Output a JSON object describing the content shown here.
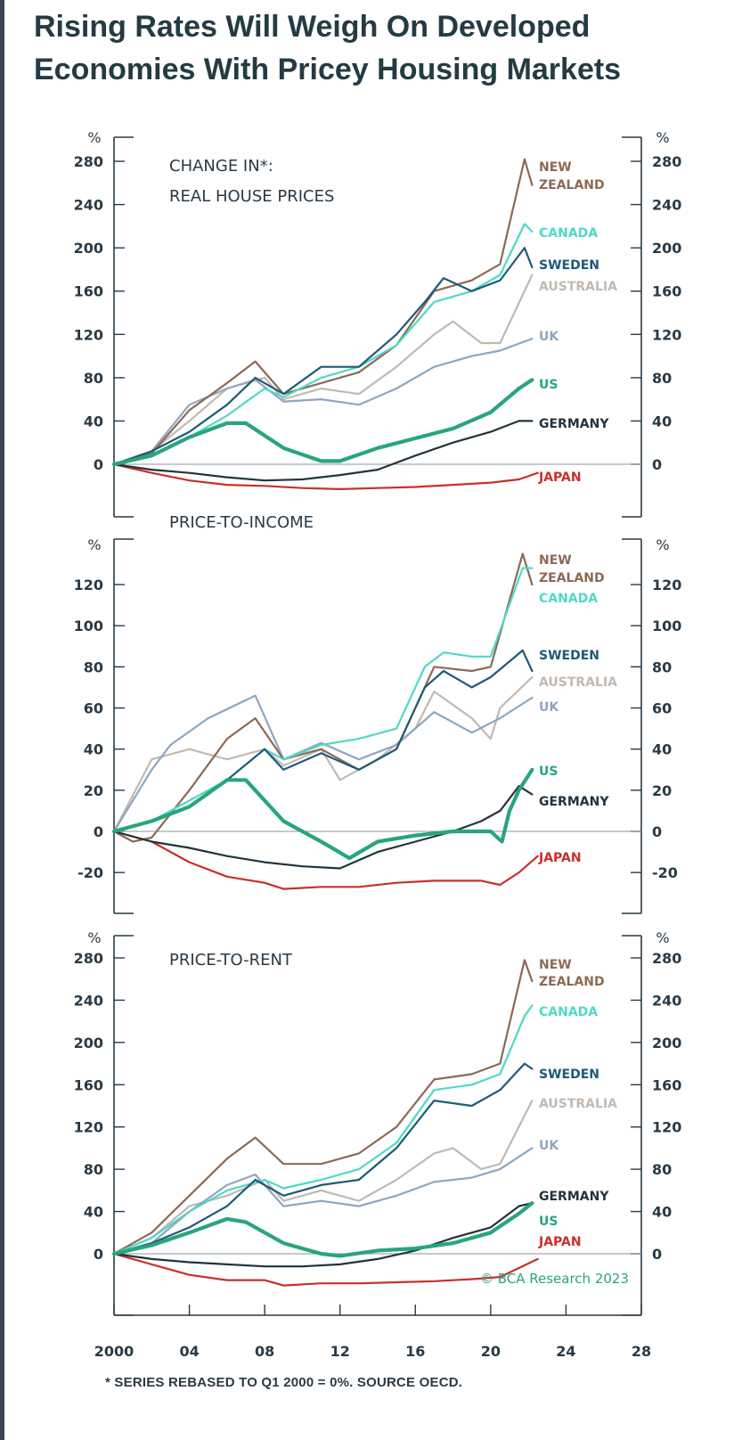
{
  "title_lines": [
    "Rising Rates Will Weigh On Developed",
    "Economies With Pricey Housing Markets"
  ],
  "footnote": "* SERIES REBASED TO Q1 2000 = 0%. SOURCE OECD.",
  "source": "© BCA Research 2023",
  "x_axis": {
    "ticks": [
      2000,
      2004,
      2008,
      2012,
      2016,
      2020,
      2024,
      2028
    ],
    "tick_labels": [
      "2000",
      "04",
      "08",
      "12",
      "16",
      "20",
      "24",
      "28"
    ],
    "range": [
      2000,
      2028
    ]
  },
  "colors": {
    "New Zealand": "#8b6a55",
    "Canada": "#4fd8c8",
    "Sweden": "#1d5a78",
    "Australia": "#c2b9b1",
    "UK": "#8ea6c0",
    "US": "#27a57e",
    "Germany": "#22343e",
    "Japan": "#c8302c"
  },
  "chart_data": [
    {
      "type": "line",
      "title": "CHANGE IN*: REAL HOUSE PRICES",
      "title_lines": [
        "CHANGE IN*:",
        "REAL HOUSE PRICES"
      ],
      "ylabel": "%",
      "ylim": [
        -40,
        290
      ],
      "yticks": [
        0,
        40,
        80,
        120,
        160,
        200,
        240,
        280
      ],
      "series": [
        {
          "name": "New Zealand",
          "label_lines": [
            "NEW",
            "ZEALAND"
          ],
          "x": [
            2000,
            2002,
            2004,
            2006,
            2007.5,
            2009,
            2011,
            2013,
            2015,
            2017,
            2019,
            2020.5,
            2021.8,
            2022.2
          ],
          "values": [
            0,
            10,
            50,
            75,
            95,
            65,
            75,
            85,
            110,
            160,
            170,
            185,
            282,
            258
          ]
        },
        {
          "name": "Canada",
          "label_lines": [
            "CANADA"
          ],
          "x": [
            2000,
            2002,
            2004,
            2006,
            2008,
            2009,
            2011,
            2013,
            2015,
            2017,
            2019,
            2020.5,
            2021.8,
            2022.2
          ],
          "values": [
            0,
            8,
            25,
            45,
            70,
            62,
            80,
            90,
            110,
            150,
            160,
            175,
            222,
            215
          ]
        },
        {
          "name": "Sweden",
          "label_lines": [
            "SWEDEN"
          ],
          "x": [
            2000,
            2002,
            2004,
            2006,
            2007.5,
            2009,
            2011,
            2013,
            2015,
            2016.5,
            2017.5,
            2019,
            2020.5,
            2021.8,
            2022.2
          ],
          "values": [
            0,
            12,
            30,
            55,
            80,
            65,
            90,
            90,
            120,
            150,
            172,
            160,
            170,
            200,
            182
          ]
        },
        {
          "name": "Australia",
          "label_lines": [
            "AUSTRALIA"
          ],
          "x": [
            2000,
            2002,
            2004,
            2006,
            2008,
            2009,
            2011,
            2013,
            2015,
            2017,
            2018,
            2019.5,
            2020.5,
            2022.2
          ],
          "values": [
            0,
            12,
            40,
            70,
            80,
            60,
            70,
            65,
            90,
            120,
            132,
            112,
            112,
            175
          ]
        },
        {
          "name": "UK",
          "label_lines": [
            "UK"
          ],
          "x": [
            2000,
            2002,
            2004,
            2006,
            2007.5,
            2009,
            2011,
            2013,
            2015,
            2017,
            2019,
            2020.5,
            2022.2
          ],
          "values": [
            0,
            12,
            55,
            70,
            78,
            58,
            60,
            55,
            70,
            90,
            100,
            105,
            116
          ]
        },
        {
          "name": "US",
          "label_lines": [
            "US"
          ],
          "x": [
            2000,
            2002,
            2004,
            2006,
            2007,
            2009,
            2011,
            2012,
            2014,
            2016,
            2018,
            2020,
            2021.5,
            2022.2
          ],
          "values": [
            0,
            8,
            25,
            38,
            38,
            15,
            3,
            3,
            15,
            24,
            33,
            48,
            70,
            78
          ]
        },
        {
          "name": "Germany",
          "label_lines": [
            "GERMANY"
          ],
          "x": [
            2000,
            2002,
            2004,
            2006,
            2008,
            2010,
            2012,
            2014,
            2016,
            2018,
            2020,
            2021.5,
            2022.2
          ],
          "values": [
            0,
            -5,
            -8,
            -12,
            -15,
            -14,
            -10,
            -5,
            8,
            20,
            30,
            40,
            40
          ]
        },
        {
          "name": "Japan",
          "label_lines": [
            "JAPAN"
          ],
          "x": [
            2000,
            2002,
            2004,
            2006,
            2008,
            2010,
            2012,
            2014,
            2016,
            2018,
            2020,
            2021.5,
            2022.5
          ],
          "values": [
            0,
            -8,
            -15,
            -19,
            -20,
            -22,
            -23,
            -22,
            -21,
            -19,
            -17,
            -14,
            -8
          ]
        }
      ]
    },
    {
      "type": "line",
      "title": "PRICE-TO-INCOME",
      "title_lines": [
        "PRICE-TO-INCOME"
      ],
      "ylabel": "%",
      "ylim": [
        -40,
        140
      ],
      "yticks": [
        -20,
        0,
        20,
        40,
        60,
        80,
        100,
        120
      ],
      "series": [
        {
          "name": "New Zealand",
          "label_lines": [
            "NEW",
            "ZEALAND"
          ],
          "x": [
            2000,
            2001,
            2002,
            2004,
            2006,
            2007.5,
            2009,
            2011,
            2013,
            2015,
            2017,
            2019,
            2020,
            2021.7,
            2022.2
          ],
          "values": [
            0,
            -5,
            -3,
            20,
            45,
            55,
            35,
            40,
            30,
            40,
            80,
            78,
            80,
            135,
            120
          ]
        },
        {
          "name": "Canada",
          "label_lines": [
            "CANADA"
          ],
          "x": [
            2000,
            2002,
            2004,
            2006,
            2008,
            2009,
            2011,
            2013,
            2015,
            2016.5,
            2017.5,
            2019,
            2020,
            2021.7,
            2022.2
          ],
          "values": [
            0,
            5,
            15,
            25,
            40,
            35,
            42,
            45,
            50,
            80,
            87,
            85,
            85,
            128,
            128
          ]
        },
        {
          "name": "Sweden",
          "label_lines": [
            "SWEDEN"
          ],
          "x": [
            2000,
            2002,
            2004,
            2006,
            2008,
            2009,
            2011,
            2013,
            2015,
            2016.5,
            2017.5,
            2019,
            2020,
            2021.7,
            2022.2
          ],
          "values": [
            0,
            5,
            12,
            25,
            40,
            30,
            38,
            30,
            40,
            70,
            78,
            70,
            75,
            88,
            78
          ]
        },
        {
          "name": "Australia",
          "label_lines": [
            "AUSTRALIA"
          ],
          "x": [
            2000,
            2002,
            2004,
            2006,
            2008,
            2009,
            2011,
            2012,
            2014,
            2016,
            2017,
            2019,
            2020,
            2020.5,
            2022.2
          ],
          "values": [
            0,
            35,
            40,
            35,
            40,
            32,
            40,
            25,
            35,
            50,
            68,
            55,
            45,
            60,
            75
          ]
        },
        {
          "name": "UK",
          "label_lines": [
            "UK"
          ],
          "x": [
            2000,
            2002,
            2003,
            2005,
            2007.5,
            2009,
            2011,
            2013,
            2015,
            2017,
            2019,
            2020.5,
            2022.2
          ],
          "values": [
            0,
            30,
            42,
            55,
            66,
            35,
            43,
            35,
            42,
            58,
            48,
            55,
            65
          ]
        },
        {
          "name": "US",
          "label_lines": [
            "US"
          ],
          "x": [
            2000,
            2002,
            2004,
            2006,
            2007,
            2009,
            2011,
            2012.5,
            2014,
            2016,
            2018,
            2020,
            2020.6,
            2021,
            2021.5,
            2022.2
          ],
          "values": [
            0,
            5,
            12,
            25,
            25,
            5,
            -5,
            -13,
            -5,
            -2,
            0,
            0,
            -5,
            10,
            20,
            30
          ]
        },
        {
          "name": "Germany",
          "label_lines": [
            "GERMANY"
          ],
          "x": [
            2000,
            2002,
            2004,
            2006,
            2008,
            2010,
            2012,
            2014,
            2016,
            2018,
            2019.5,
            2020.5,
            2021.5,
            2022.2
          ],
          "values": [
            0,
            -5,
            -8,
            -12,
            -15,
            -17,
            -18,
            -10,
            -5,
            0,
            5,
            10,
            22,
            18
          ]
        },
        {
          "name": "Japan",
          "label_lines": [
            "JAPAN"
          ],
          "x": [
            2000,
            2002,
            2004,
            2006,
            2008,
            2009,
            2011,
            2013,
            2015,
            2017,
            2019.5,
            2020.5,
            2021.5,
            2022.5
          ],
          "values": [
            0,
            -5,
            -15,
            -22,
            -25,
            -28,
            -27,
            -27,
            -25,
            -24,
            -24,
            -26,
            -20,
            -12
          ]
        }
      ]
    },
    {
      "type": "line",
      "title": "PRICE-TO-RENT",
      "title_lines": [
        "PRICE-TO-RENT"
      ],
      "ylabel": "%",
      "ylim": [
        -60,
        290
      ],
      "yticks": [
        0,
        40,
        80,
        120,
        160,
        200,
        240,
        280
      ],
      "series": [
        {
          "name": "New Zealand",
          "label_lines": [
            "NEW",
            "ZEALAND"
          ],
          "x": [
            2000,
            2002,
            2004,
            2006,
            2007.5,
            2009,
            2011,
            2013,
            2015,
            2017,
            2019,
            2020.5,
            2021.8,
            2022.2
          ],
          "values": [
            0,
            20,
            55,
            90,
            110,
            85,
            85,
            95,
            120,
            165,
            170,
            180,
            278,
            258
          ]
        },
        {
          "name": "Canada",
          "label_lines": [
            "CANADA"
          ],
          "x": [
            2000,
            2002,
            2004,
            2006,
            2008,
            2009,
            2011,
            2013,
            2015,
            2017,
            2019,
            2020.5,
            2021.8,
            2022.2
          ],
          "values": [
            0,
            15,
            40,
            60,
            70,
            62,
            70,
            80,
            105,
            155,
            160,
            170,
            225,
            235
          ]
        },
        {
          "name": "Sweden",
          "label_lines": [
            "SWEDEN"
          ],
          "x": [
            2000,
            2002,
            2004,
            2006,
            2007.5,
            2009,
            2011,
            2013,
            2015,
            2017,
            2019,
            2020.5,
            2021.8,
            2022.2
          ],
          "values": [
            0,
            10,
            25,
            45,
            70,
            55,
            65,
            70,
            100,
            145,
            140,
            155,
            180,
            175
          ]
        },
        {
          "name": "Australia",
          "label_lines": [
            "AUSTRALIA"
          ],
          "x": [
            2000,
            2002,
            2004,
            2006,
            2008,
            2009,
            2011,
            2013,
            2015,
            2017,
            2018,
            2019.5,
            2020.5,
            2022.2
          ],
          "values": [
            0,
            15,
            45,
            55,
            70,
            50,
            60,
            50,
            70,
            95,
            100,
            80,
            85,
            145
          ]
        },
        {
          "name": "UK",
          "label_lines": [
            "UK"
          ],
          "x": [
            2000,
            2002,
            2004,
            2006,
            2007.5,
            2009,
            2011,
            2013,
            2015,
            2017,
            2019,
            2020.5,
            2022.2
          ],
          "values": [
            0,
            10,
            40,
            65,
            75,
            45,
            50,
            45,
            55,
            68,
            72,
            80,
            100
          ]
        },
        {
          "name": "US",
          "label_lines": [
            "US"
          ],
          "x": [
            2000,
            2002,
            2004,
            2006,
            2007,
            2009,
            2011,
            2012,
            2014,
            2016,
            2018,
            2020,
            2021.5,
            2022.2
          ],
          "values": [
            0,
            8,
            20,
            33,
            30,
            10,
            0,
            -2,
            3,
            5,
            10,
            20,
            38,
            48
          ]
        },
        {
          "name": "Germany",
          "label_lines": [
            "GERMANY"
          ],
          "x": [
            2000,
            2002,
            2004,
            2006,
            2008,
            2010,
            2012,
            2014,
            2016,
            2018,
            2020,
            2021.5,
            2022.2
          ],
          "values": [
            0,
            -5,
            -8,
            -10,
            -12,
            -12,
            -10,
            -5,
            3,
            15,
            25,
            45,
            48
          ]
        },
        {
          "name": "Japan",
          "label_lines": [
            "JAPAN"
          ],
          "x": [
            2000,
            2002,
            2004,
            2006,
            2008,
            2009,
            2011,
            2013,
            2015,
            2017,
            2019,
            2020.5,
            2022.5
          ],
          "values": [
            0,
            -10,
            -20,
            -25,
            -25,
            -30,
            -28,
            -28,
            -27,
            -26,
            -24,
            -22,
            -5
          ]
        }
      ]
    }
  ]
}
